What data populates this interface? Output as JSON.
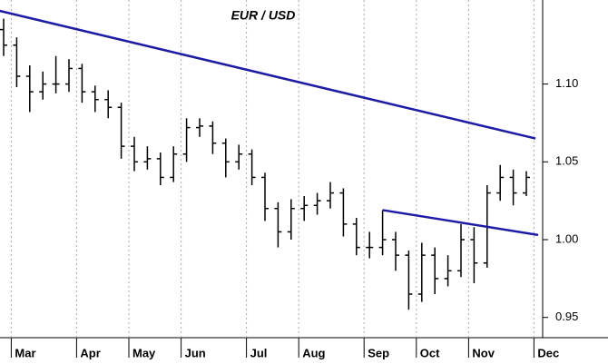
{
  "chart_data": {
    "type": "ohlc",
    "title": "EUR / USD",
    "categories": [
      null,
      "Mar",
      null,
      null,
      null,
      null,
      "Apr",
      null,
      null,
      null,
      "May",
      null,
      null,
      null,
      "Jun",
      null,
      null,
      null,
      null,
      "Jul",
      null,
      null,
      null,
      "Aug",
      null,
      null,
      null,
      null,
      "Sep",
      null,
      null,
      null,
      "Oct",
      null,
      null,
      null,
      "Nov",
      null,
      null,
      null,
      null,
      "Dec"
    ],
    "open": [
      1.135,
      1.125,
      1.105,
      1.095,
      1.1,
      1.1,
      1.11,
      1.095,
      1.09,
      1.085,
      1.06,
      1.05,
      1.052,
      1.04,
      1.055,
      1.072,
      1.073,
      1.062,
      1.05,
      1.055,
      1.04,
      1.02,
      1.005,
      1.02,
      1.022,
      1.025,
      1.03,
      1.01,
      0.995,
      0.995,
      1.0,
      0.99,
      0.965,
      0.99,
      0.975,
      0.98,
      1.0,
      0.985,
      1.03,
      1.04,
      1.03,
      null
    ],
    "high": [
      1.142,
      1.13,
      1.112,
      1.108,
      1.118,
      1.116,
      1.113,
      1.099,
      1.096,
      1.088,
      1.066,
      1.06,
      1.056,
      1.06,
      1.078,
      1.078,
      1.076,
      1.065,
      1.061,
      1.058,
      1.043,
      1.024,
      1.026,
      1.028,
      1.03,
      1.037,
      1.033,
      1.014,
      1.005,
      1.019,
      1.005,
      0.993,
      0.998,
      0.995,
      0.99,
      1.01,
      1.008,
      1.035,
      1.048,
      1.045,
      1.044,
      null
    ],
    "low": [
      1.118,
      1.098,
      1.082,
      1.09,
      1.094,
      1.095,
      1.088,
      1.082,
      1.078,
      1.052,
      1.044,
      1.045,
      1.035,
      1.037,
      1.05,
      1.066,
      1.055,
      1.04,
      1.045,
      1.035,
      1.012,
      0.995,
      1.0,
      1.012,
      1.016,
      1.02,
      1.002,
      0.99,
      0.988,
      0.99,
      0.98,
      0.955,
      0.96,
      0.965,
      0.97,
      0.976,
      0.972,
      0.982,
      1.025,
      1.022,
      1.028,
      null
    ],
    "close": [
      1.125,
      1.105,
      1.095,
      1.1,
      1.1,
      1.11,
      1.095,
      1.09,
      1.085,
      1.06,
      1.05,
      1.052,
      1.04,
      1.055,
      1.072,
      1.073,
      1.062,
      1.05,
      1.055,
      1.04,
      1.02,
      1.005,
      1.02,
      1.022,
      1.025,
      1.03,
      1.01,
      0.995,
      0.995,
      1.0,
      0.99,
      0.965,
      0.99,
      0.975,
      0.98,
      1.0,
      0.985,
      1.03,
      1.04,
      1.03,
      1.04,
      null
    ],
    "color": "#000000",
    "trendlines": [
      {
        "x": [
          -0.3,
          40.7
        ],
        "y": [
          1.147,
          1.065
        ],
        "color": "#1c1ca8"
      },
      {
        "x": [
          29,
          40.9
        ],
        "y": [
          1.019,
          1.003
        ],
        "color": "#1c1ca8"
      }
    ],
    "ylim": [
      0.937,
      1.154
    ],
    "yticks": [
      {
        "value": 1.1,
        "label": "1.10"
      },
      1.05,
      {
        "value": 1.0,
        "label": "1.00"
      },
      0.95
    ],
    "grid": true
  }
}
